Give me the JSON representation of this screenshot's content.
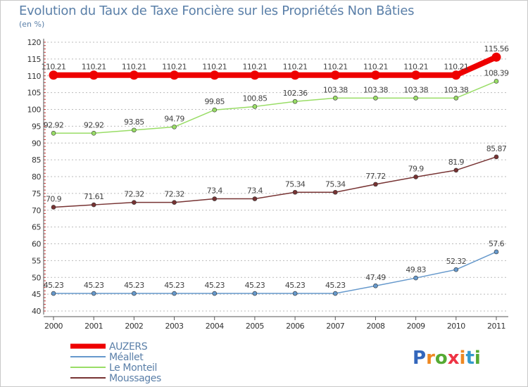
{
  "chart_data": {
    "type": "line",
    "title": "Evolution du Taux de Taxe Foncière sur les Propriétés Non Bâties",
    "ylabel": "(en %)",
    "ylim": [
      40,
      120
    ],
    "yticks": [
      40,
      45,
      50,
      55,
      60,
      65,
      70,
      75,
      80,
      85,
      90,
      95,
      100,
      105,
      110,
      115,
      120
    ],
    "x": [
      "2000",
      "2001",
      "2002",
      "2003",
      "2004",
      "2005",
      "2006",
      "2007",
      "2008",
      "2009",
      "2010",
      "2011"
    ],
    "series": [
      {
        "name": "AUZERS",
        "color": "#ee0000",
        "values": [
          110.21,
          110.21,
          110.21,
          110.21,
          110.21,
          110.21,
          110.21,
          110.21,
          110.21,
          110.21,
          110.21,
          115.56
        ],
        "labels": [
          "110.21",
          "110.21",
          "110.21",
          "110.21",
          "110.21",
          "110.21",
          "110.21",
          "110.21",
          "110.21",
          "110.21",
          "110.21",
          "115.56"
        ]
      },
      {
        "name": "Méallet",
        "color": "#6699cc",
        "values": [
          45.23,
          45.23,
          45.23,
          45.23,
          45.23,
          45.23,
          45.23,
          45.23,
          47.49,
          49.83,
          52.32,
          57.6
        ],
        "labels": [
          "45.23",
          "45.23",
          "45.23",
          "45.23",
          "45.23",
          "45.23",
          "45.23",
          "45.23",
          "47.49",
          "49.83",
          "52.32",
          "57.6"
        ]
      },
      {
        "name": "Le Monteil",
        "color": "#99dd66",
        "values": [
          92.92,
          92.92,
          93.85,
          94.79,
          99.85,
          100.85,
          102.36,
          103.38,
          103.38,
          103.38,
          103.38,
          108.39
        ],
        "labels": [
          "92.92",
          "92.92",
          "93.85",
          "94.79",
          "99.85",
          "100.85",
          "102.36",
          "103.38",
          "103.38",
          "103.38",
          "103.38",
          "108.39"
        ]
      },
      {
        "name": "Moussages",
        "color": "#773333",
        "values": [
          70.9,
          71.61,
          72.32,
          72.32,
          73.4,
          73.4,
          75.34,
          75.34,
          77.72,
          79.9,
          81.9,
          85.87
        ],
        "labels": [
          "70.9",
          "71.61",
          "72.32",
          "72.32",
          "73.4",
          "73.4",
          "75.34",
          "75.34",
          "77.72",
          "79.9",
          "81.9",
          "85.87"
        ]
      }
    ],
    "legend": "bottom-left",
    "grid": "horizontal dashed"
  },
  "logo": {
    "text": "Prox iti",
    "letters": [
      "P",
      "r",
      "o",
      "x",
      "i",
      "t",
      "i"
    ],
    "colors": [
      "#3366bb",
      "#ee8822",
      "#55aa33",
      "#ee3344",
      "#ee8822",
      "#3399cc",
      "#55aa33"
    ]
  }
}
